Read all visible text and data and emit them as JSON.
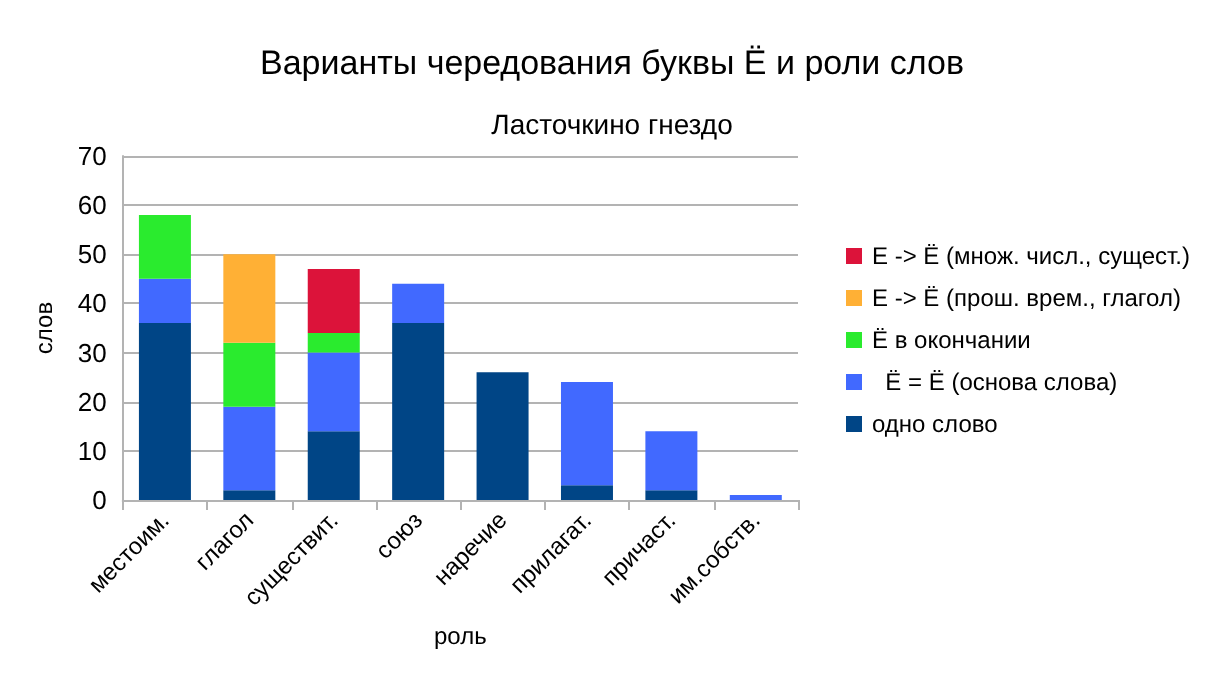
{
  "chart_data": {
    "type": "bar",
    "title": "Варианты чередования буквы Ё и роли слов",
    "subtitle": "Ласточкино гнездо",
    "xlabel": "роль",
    "ylabel": "слов",
    "categories": [
      "местоим.",
      "глагол",
      "существит.",
      "союз",
      "наречие",
      "прилагат.",
      "причаст.",
      "им.собств."
    ],
    "stacked": true,
    "series": [
      {
        "name": "одно слово",
        "color": "#004586",
        "values": [
          36,
          2,
          14,
          36,
          26,
          3,
          2,
          null
        ]
      },
      {
        "name": "  Ё = Ё (основа слова)",
        "color": "#4169ff",
        "values": [
          9,
          17,
          16,
          8,
          null,
          21,
          12,
          1
        ]
      },
      {
        "name": "Ё в окончании",
        "color": "#2aeb2e",
        "values": [
          13,
          13,
          4,
          null,
          null,
          null,
          null,
          null
        ]
      },
      {
        "name": "Е -> Ё (прош. врем., глагол)",
        "color": "#ffb035",
        "values": [
          null,
          18,
          null,
          null,
          null,
          null,
          null,
          null
        ]
      },
      {
        "name": "Е -> Ё (множ. числ., сущест.)",
        "color": "#dc133a",
        "values": [
          null,
          null,
          13,
          null,
          null,
          null,
          null,
          null
        ]
      }
    ],
    "ylim": [
      0,
      70
    ],
    "yticks": [
      0,
      10,
      20,
      30,
      40,
      50,
      60,
      70
    ],
    "grid": "y",
    "legend": "right"
  }
}
